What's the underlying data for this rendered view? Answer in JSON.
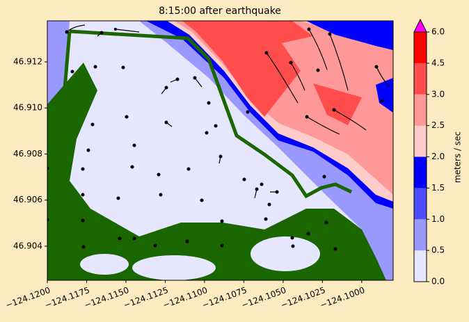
{
  "chart_data": {
    "type": "contourf",
    "title": "8:15:00 after earthquake",
    "xlim": [
      -124.12,
      -124.098
    ],
    "ylim": [
      46.90252,
      46.91378
    ],
    "xticks": [
      {
        "value": -124.12,
        "label": "−124.1200"
      },
      {
        "value": -124.1175,
        "label": "−124.1175"
      },
      {
        "value": -124.115,
        "label": "−124.1150"
      },
      {
        "value": -124.1125,
        "label": "−124.1125"
      },
      {
        "value": -124.11,
        "label": "−124.1100"
      },
      {
        "value": -124.1075,
        "label": "−124.1075"
      },
      {
        "value": -124.105,
        "label": "−124.1050"
      },
      {
        "value": -124.1025,
        "label": "−124.1025"
      },
      {
        "value": -124.1,
        "label": "−124.1000"
      }
    ],
    "yticks": [
      {
        "value": 46.904,
        "label": "46.904"
      },
      {
        "value": 46.906,
        "label": "46.906"
      },
      {
        "value": 46.908,
        "label": "46.908"
      },
      {
        "value": 46.91,
        "label": "46.910"
      },
      {
        "value": 46.912,
        "label": "46.912"
      }
    ],
    "colorbar": {
      "label": "meters / sec",
      "levels": [
        0,
        0.5,
        1,
        1.5,
        2,
        2.5,
        3,
        4.5,
        6
      ],
      "colors": [
        "#e6e6ff",
        "#9999ff",
        "#4d4dff",
        "#0000ff",
        "#ffcccc",
        "#ff9999",
        "#ff4d4d",
        "#ff0000"
      ],
      "extend_color": "#ff00ff",
      "ticks": [
        {
          "value": 0,
          "label": "0.0"
        },
        {
          "value": 0.5,
          "label": "0.5"
        },
        {
          "value": 1,
          "label": "1.0"
        },
        {
          "value": 1.5,
          "label": "1.5"
        },
        {
          "value": 2,
          "label": "2.0"
        },
        {
          "value": 2.5,
          "label": "2.5"
        },
        {
          "value": 3,
          "label": "3.0"
        },
        {
          "value": 4.5,
          "label": "4.5"
        },
        {
          "value": 6,
          "label": "6.0"
        }
      ]
    },
    "land_color": "#1a6600"
  }
}
